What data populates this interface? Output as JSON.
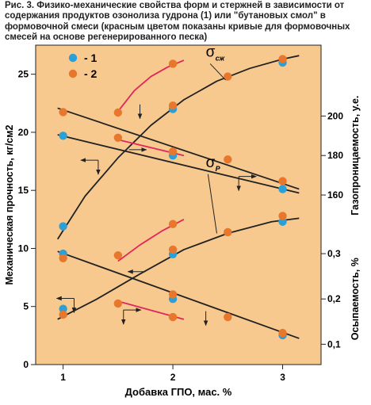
{
  "figure": {
    "caption": "Рис. 3. Физико-механические свойства форм и стержней в зависимости от содержания продуктов озонолиза гудрона (1) или \"бутановых смол\" в формовочной смеси (красным цветом показаны кривые для формовочных смесей на основе регенерированного песка)"
  },
  "chart_data": {
    "type": "scatter",
    "title": "",
    "xlabel": "Добавка ГПО, мас. %",
    "ylabel_left": "Механическая прочность, кг/см2",
    "ylabel_right_top": "Газопроницаемость, у.е.",
    "ylabel_right_bottom": "Осыпаемость, %",
    "x_ticks": [
      "1",
      "2",
      "3"
    ],
    "xlim": [
      0.75,
      3.35
    ],
    "y_left_ticks": [
      "0",
      "5",
      "10",
      "15",
      "20",
      "25"
    ],
    "ylim_left": [
      0,
      27.5
    ],
    "y_right_top_ticks": [
      "160",
      "180",
      "200"
    ],
    "y_right_top_range": [
      150,
      220
    ],
    "y_right_bottom_ticks": [
      "0,1",
      "0,2",
      "0,3"
    ],
    "y_right_bottom_range": [
      0.05,
      0.35
    ],
    "legend": {
      "position": "top-left",
      "entries": [
        {
          "label": "- 1",
          "color": "#2a9fd8"
        },
        {
          "label": "- 2",
          "color": "#e8772e"
        }
      ]
    },
    "colors": {
      "background": "#f7c98f",
      "series_1": "#2a9fd8",
      "series_2": "#e8772e",
      "curve": "#222222",
      "red_curve": "#e0265a"
    },
    "annotations": [
      {
        "label": "σ",
        "sub": "сж",
        "x": 2.3,
        "y": 26.5
      },
      {
        "label": "σ",
        "sub": "Р",
        "x": 2.3,
        "y": 17.0
      }
    ],
    "series": [
      {
        "name": "- 1",
        "group": "compressive_strength",
        "axis": "left",
        "x": [
          1,
          2,
          3
        ],
        "y": [
          11.9,
          22.0,
          26.0
        ]
      },
      {
        "name": "- 2",
        "group": "compressive_strength",
        "axis": "left",
        "x": [
          1.5,
          2,
          2.5,
          3
        ],
        "y": [
          21.7,
          22.3,
          24.8,
          26.3
        ]
      },
      {
        "name": "- 2",
        "group": "compressive_strength_regenerated",
        "axis": "left",
        "x": [
          2
        ],
        "y": [
          25.9
        ]
      },
      {
        "name": "- 1",
        "group": "gas_permeability",
        "axis": "right_top",
        "x": [
          1,
          2,
          3
        ],
        "y": [
          190,
          180,
          163
        ]
      },
      {
        "name": "- 2",
        "group": "gas_permeability",
        "axis": "right_top",
        "x": [
          1,
          2.5,
          3
        ],
        "y": [
          202,
          178,
          167
        ]
      },
      {
        "name": "- 2",
        "group": "gas_permeability_regenerated",
        "axis": "right_top",
        "x": [
          1.5,
          2
        ],
        "y": [
          189,
          182
        ]
      },
      {
        "name": "- 1",
        "group": "tensile_strength",
        "axis": "left",
        "x": [
          1,
          2,
          3
        ],
        "y": [
          4.8,
          9.5,
          12.3
        ]
      },
      {
        "name": "- 2",
        "group": "tensile_strength",
        "axis": "left",
        "x": [
          1,
          2,
          2.5,
          3
        ],
        "y": [
          4.3,
          9.9,
          11.4,
          12.8
        ]
      },
      {
        "name": "- 2",
        "group": "tensile_strength_regenerated",
        "axis": "left",
        "x": [
          1.5,
          2
        ],
        "y": [
          9.4,
          12.1
        ]
      },
      {
        "name": "- 1",
        "group": "friability",
        "axis": "right_bottom",
        "x": [
          1,
          2,
          3
        ],
        "y": [
          0.3,
          0.2,
          0.12
        ]
      },
      {
        "name": "- 2",
        "group": "friability",
        "axis": "right_bottom",
        "x": [
          1,
          2,
          2.5,
          3
        ],
        "y": [
          0.29,
          0.21,
          0.16,
          0.125
        ]
      },
      {
        "name": "- 2",
        "group": "friability_regenerated",
        "axis": "right_bottom",
        "x": [
          1.5,
          2
        ],
        "y": [
          0.19,
          0.16
        ]
      }
    ],
    "curves": [
      {
        "group": "compressive_strength",
        "color": "curve",
        "axis": "left",
        "x": [
          0.95,
          1.2,
          1.5,
          1.8,
          2.1,
          2.4,
          2.7,
          3.0,
          3.15
        ],
        "y": [
          10.8,
          14.5,
          17.8,
          20.6,
          22.8,
          24.4,
          25.5,
          26.3,
          26.6
        ]
      },
      {
        "group": "compressive_strength_regenerated",
        "color": "red_curve",
        "axis": "left",
        "x": [
          1.5,
          1.65,
          1.8,
          1.95,
          2.1
        ],
        "y": [
          21.8,
          23.6,
          24.8,
          25.6,
          26.2
        ]
      },
      {
        "group": "gas_permeability_1",
        "color": "curve",
        "axis": "right_top",
        "x": [
          0.95,
          3.15
        ],
        "y": [
          190.5,
          161
        ]
      },
      {
        "group": "gas_permeability_2",
        "color": "curve",
        "axis": "right_top",
        "x": [
          0.95,
          3.15
        ],
        "y": [
          204,
          163
        ]
      },
      {
        "group": "gas_permeability_regenerated",
        "color": "red_curve",
        "axis": "right_top",
        "x": [
          1.5,
          2.1
        ],
        "y": [
          188,
          180
        ]
      },
      {
        "group": "tensile_strength",
        "color": "curve",
        "axis": "left",
        "x": [
          0.95,
          1.3,
          1.7,
          2.1,
          2.5,
          2.9,
          3.15
        ],
        "y": [
          3.9,
          5.6,
          7.8,
          9.9,
          11.3,
          12.3,
          12.6
        ]
      },
      {
        "group": "tensile_strength_regenerated",
        "color": "red_curve",
        "axis": "left",
        "x": [
          1.5,
          1.7,
          1.9,
          2.1
        ],
        "y": [
          8.9,
          10.3,
          11.5,
          12.5
        ]
      },
      {
        "group": "friability",
        "color": "curve",
        "axis": "right_bottom",
        "x": [
          0.95,
          3.15
        ],
        "y": [
          0.305,
          0.113
        ]
      },
      {
        "group": "friability_regenerated",
        "color": "red_curve",
        "axis": "right_bottom",
        "x": [
          1.5,
          2.1
        ],
        "y": [
          0.195,
          0.155
        ]
      }
    ],
    "axis_arrows": [
      {
        "x": 1.32,
        "y": 17.6,
        "dir": "left"
      },
      {
        "x": 1.32,
        "y": 17.6,
        "dir": "down"
      },
      {
        "x": 1.7,
        "y": 22.4,
        "dir": "down"
      },
      {
        "x": 2.6,
        "y": 16.2,
        "dir": "right"
      },
      {
        "x": 2.6,
        "y": 16.2,
        "dir": "down"
      },
      {
        "x": 1.6,
        "y": 18.5,
        "dir": "right"
      },
      {
        "x": 1.1,
        "y": 5.7,
        "dir": "left"
      },
      {
        "x": 1.1,
        "y": 5.7,
        "dir": "down"
      },
      {
        "x": 1.75,
        "y": 8.0,
        "dir": "left"
      },
      {
        "x": 1.55,
        "y": 4.7,
        "dir": "right"
      },
      {
        "x": 1.55,
        "y": 4.7,
        "dir": "down"
      },
      {
        "x": 2.3,
        "y": 4.6,
        "dir": "down"
      }
    ]
  }
}
